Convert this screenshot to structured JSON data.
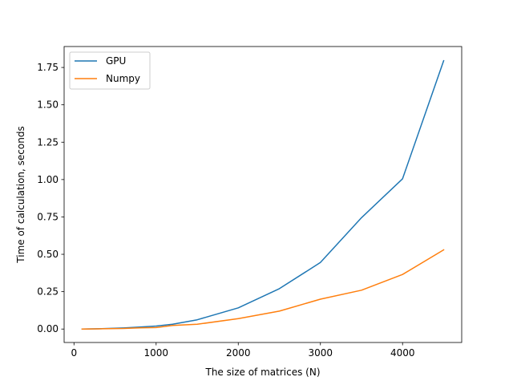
{
  "chart_data": {
    "type": "line",
    "title": "",
    "xlabel": "The size of matrices (N)",
    "ylabel": "Time of calculation, seconds",
    "xlim": [
      -120,
      4720
    ],
    "ylim": [
      -0.09,
      1.89
    ],
    "x_ticks": [
      0,
      1000,
      2000,
      3000,
      4000
    ],
    "x_tick_labels": [
      "0",
      "1000",
      "2000",
      "3000",
      "4000"
    ],
    "y_ticks": [
      0.0,
      0.25,
      0.5,
      0.75,
      1.0,
      1.25,
      1.5,
      1.75
    ],
    "y_tick_labels": [
      "0.00",
      "0.25",
      "0.50",
      "0.75",
      "1.00",
      "1.25",
      "1.50",
      "1.75"
    ],
    "grid": false,
    "legend_position": "top-left",
    "x": [
      100,
      300,
      600,
      800,
      1000,
      1200,
      1500,
      2000,
      2500,
      3000,
      3500,
      4000,
      4500
    ],
    "series": [
      {
        "name": "GPU",
        "color": "#1f77b4",
        "values": [
          0.0,
          0.002,
          0.007,
          0.013,
          0.02,
          0.032,
          0.062,
          0.142,
          0.27,
          0.445,
          0.745,
          1.005,
          1.795
        ]
      },
      {
        "name": "Numpy",
        "color": "#ff7f0e",
        "values": [
          0.0,
          0.001,
          0.004,
          0.008,
          0.01,
          0.024,
          0.032,
          0.07,
          0.12,
          0.2,
          0.26,
          0.365,
          0.53
        ]
      }
    ]
  }
}
